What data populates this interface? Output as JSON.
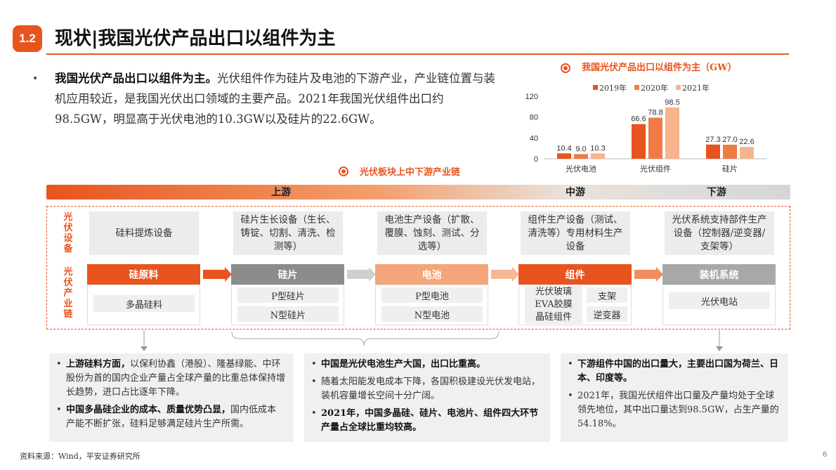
{
  "header": {
    "section_number": "1.2",
    "title": "现状|我国光伏产品出口以组件为主"
  },
  "intro": {
    "bullet": "•",
    "lead": "我国光伏产品出口以组件为主。",
    "body": "光伏组件作为硅片及电池的下游产业，产业链位置与装机应用较近，是我国光伏出口领域的主要产品。2021年我国光伏组件出口约98.5GW，明显高于光伏电池的10.3GW以及硅片的22.6GW。"
  },
  "chart_data": {
    "type": "bar",
    "title": "我国光伏产品出口以组件为主（GW）",
    "categories": [
      "光伏电池",
      "光伏组件",
      "硅片"
    ],
    "series": [
      {
        "name": "2019年",
        "values": [
          10.4,
          66.6,
          27.3
        ],
        "color": "#e8541e"
      },
      {
        "name": "2020年",
        "values": [
          9.0,
          78.8,
          27.0
        ],
        "color": "#f07b45"
      },
      {
        "name": "2021年",
        "values": [
          10.3,
          98.5,
          22.6
        ],
        "color": "#f8b48c"
      }
    ],
    "yticks": [
      0,
      40,
      80,
      120
    ],
    "ylim": [
      0,
      120
    ],
    "legend_position": "top",
    "data_labels": true,
    "grid": false
  },
  "flow": {
    "title": "光伏板块上中下游产业链",
    "stages": {
      "upstream": "上游",
      "midstream": "中游",
      "downstream": "下游"
    },
    "row_labels": {
      "equipment": "光伏设备",
      "chain": "光伏产业链"
    },
    "equipment": [
      "硅料提炼设备",
      "硅片生长设备（生长、铸锭、切割、清洗、检测等）",
      "电池生产设备（扩散、覆膜、蚀刻、测试、分选等）",
      "组件生产设备（测试、清洗等）专用材料生产设备",
      "光伏系统支持部件生产设备（控制器/逆变器/支架等）"
    ],
    "chain": [
      {
        "name": "硅原料",
        "items": [
          "多晶硅料"
        ]
      },
      {
        "name": "硅片",
        "items": [
          "P型硅片",
          "N型硅片"
        ]
      },
      {
        "name": "电池",
        "items": [
          "P型电池",
          "N型电池"
        ]
      },
      {
        "name": "组件",
        "items": [
          "光伏玻璃",
          "EVA胶膜",
          "晶硅组件",
          "支架",
          "逆变器"
        ]
      },
      {
        "name": "装机系统",
        "items": [
          "光伏电站"
        ]
      }
    ],
    "colors": {
      "silicon": "#e8541e",
      "wafer": "#8c8c8c",
      "cell": "#f5a57a",
      "module": "#e8541e",
      "system": "#a8a8a8"
    }
  },
  "bottom": {
    "left": [
      {
        "lead": "上游硅料方面，",
        "text": "以保利协鑫（港股）、隆基绿能、中环股份为首的国内企业产量占全球产量的比重总体保持增长趋势，进口占比逐年下降。"
      },
      {
        "lead": "中国多晶硅企业的成本、质量优势凸显，",
        "text": "国内低成本产能不断扩张，硅料足够满足硅片生产所需。"
      }
    ],
    "middle": [
      {
        "lead": "中国是光伏电池生产大国，出口比重高。",
        "text": ""
      },
      {
        "lead": "",
        "text": "随着太阳能发电成本下降，各国积极建设光伏发电站，装机容量增长空间十分广阔。"
      },
      {
        "lead": "2021年，中国多晶硅、硅片、电池片、组件四大环节产量占全球比重均较高。",
        "text": ""
      }
    ],
    "right": [
      {
        "lead": "下游组件中国的出口量大，主要出口国为荷兰、日本、印度等。",
        "text": ""
      },
      {
        "lead": "",
        "text": "2021年，我国光伏组件出口量及产量均处于全球领先地位，其中出口量达到98.5GW，占生产量的54.18%。"
      }
    ]
  },
  "footer": {
    "source": "资料来源：Wind，平安证券研究所",
    "page": "6"
  }
}
